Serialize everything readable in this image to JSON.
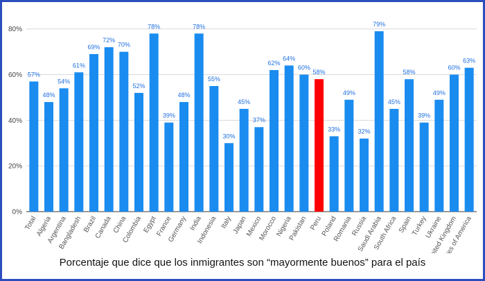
{
  "chart_data": {
    "type": "bar",
    "title": "Porcentaje que dice que los inmigrantes son “mayormente buenos” para el país",
    "xlabel": "",
    "ylabel": "",
    "ylim": [
      0,
      86
    ],
    "yticks": [
      0,
      20,
      40,
      60,
      80
    ],
    "ytick_labels": [
      "0%",
      "20%",
      "40%",
      "60%",
      "80%"
    ],
    "grid": "horizontal",
    "colors": {
      "default": "#1a8cf0",
      "highlight": "#ff0000"
    },
    "highlight_category": "Peru",
    "categories": [
      "Total",
      "Algeria",
      "Argentina",
      "Bangladesh",
      "Brazil",
      "Canada",
      "China",
      "Colombia",
      "Egypt",
      "France",
      "Germany",
      "India",
      "Indonesia",
      "Italy",
      "Japan",
      "Mexico",
      "Morocco",
      "Nigeria",
      "Pakistan",
      "Peru",
      "Poland",
      "Romania",
      "Russia",
      "Saudi Arabia",
      "South Africa",
      "Spain",
      "Turkey",
      "Ukraine",
      "United Kingdom",
      "United States of America"
    ],
    "values": [
      57,
      48,
      54,
      61,
      69,
      72,
      70,
      52,
      78,
      39,
      48,
      78,
      55,
      30,
      45,
      37,
      62,
      64,
      60,
      58,
      33,
      49,
      32,
      79,
      45,
      58,
      39,
      49,
      60,
      63
    ],
    "value_labels": [
      "57%",
      "48%",
      "54%",
      "61%",
      "69%",
      "72%",
      "70%",
      "52%",
      "78%",
      "39%",
      "48%",
      "78%",
      "55%",
      "30%",
      "45%",
      "37%",
      "62%",
      "64%",
      "60%",
      "58%",
      "33%",
      "49%",
      "32%",
      "79%",
      "45%",
      "58%",
      "39%",
      "49%",
      "60%",
      "63%"
    ]
  }
}
